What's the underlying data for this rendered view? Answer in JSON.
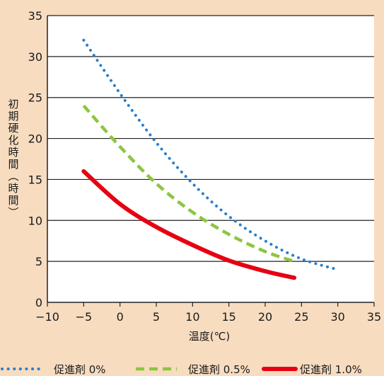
{
  "chart_data": {
    "type": "line",
    "title": "",
    "xlabel": "温度(℃)",
    "ylabel": "初期硬化時間(時間)",
    "xlim": [
      -10,
      35
    ],
    "ylim": [
      0,
      35
    ],
    "xticks": [
      "-10",
      "-5",
      "0",
      "5",
      "10",
      "15",
      "20",
      "25",
      "30",
      "35"
    ],
    "yticks": [
      "0",
      "5",
      "10",
      "15",
      "20",
      "25",
      "30",
      "35"
    ],
    "grid": "horizontal",
    "legend_position": "bottom",
    "series": [
      {
        "name": "促進剤 0%",
        "style": "dotted",
        "color": "#2a7fc9",
        "points": [
          [
            -5,
            32
          ],
          [
            0,
            25.5
          ],
          [
            5,
            19.5
          ],
          [
            10,
            14.5
          ],
          [
            15,
            10.5
          ],
          [
            20,
            7.5
          ],
          [
            25,
            5.3
          ],
          [
            30,
            4
          ]
        ]
      },
      {
        "name": "促進剤 0.5%",
        "style": "dashed",
        "color": "#8cc63f",
        "points": [
          [
            -5,
            24
          ],
          [
            0,
            19
          ],
          [
            5,
            14.5
          ],
          [
            10,
            11
          ],
          [
            15,
            8.3
          ],
          [
            20,
            6.2
          ],
          [
            24,
            5
          ]
        ]
      },
      {
        "name": "促進剤 1.0%",
        "style": "solid",
        "color": "#e60012",
        "points": [
          [
            -5,
            16
          ],
          [
            0,
            12
          ],
          [
            5,
            9.2
          ],
          [
            10,
            7
          ],
          [
            15,
            5.1
          ],
          [
            20,
            3.8
          ],
          [
            24,
            3
          ]
        ]
      }
    ]
  }
}
